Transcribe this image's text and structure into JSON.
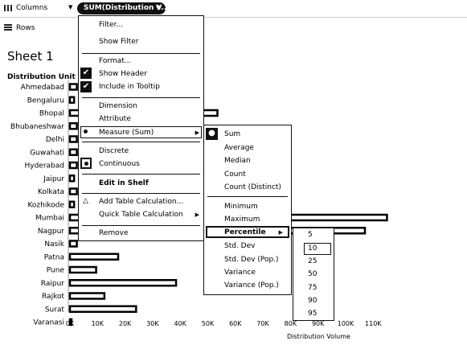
{
  "shelves": {
    "columns_label": "Columns",
    "columns_pill": "SUM(Distribution V...",
    "rows_label": "Rows"
  },
  "sheet": {
    "title": "Sheet 1",
    "row_header": "Distribution Unit"
  },
  "context_menu": {
    "filter": "Filter...",
    "show_filter": "Show Filter",
    "format": "Format...",
    "show_header": "Show Header",
    "include_tooltip": "Include in Tooltip",
    "dimension": "Dimension",
    "attribute": "Attribute",
    "measure": "Measure (Sum)",
    "discrete": "Discrete",
    "continuous": "Continuous",
    "edit_in_shelf": "Edit in Shelf",
    "add_table_calc": "Add Table Calculation...",
    "quick_table_calc": "Quick Table Calculation",
    "remove": "Remove"
  },
  "measure_submenu": {
    "sum": "Sum",
    "average": "Average",
    "median": "Median",
    "count": "Count",
    "count_distinct": "Count (Distinct)",
    "minimum": "Minimum",
    "maximum": "Maximum",
    "percentile": "Percentile",
    "std_dev": "Std. Dev",
    "std_dev_pop": "Std. Dev (Pop.)",
    "variance": "Variance",
    "variance_pop": "Variance (Pop.)"
  },
  "percentile_submenu": {
    "options": [
      "5",
      "10",
      "25",
      "50",
      "75",
      "90",
      "95"
    ],
    "selected": "10"
  },
  "colors": {
    "pill": "#111111",
    "bar_fill": "#ffffff",
    "bar_stroke": "#000000"
  },
  "chart_data": {
    "type": "bar",
    "orientation": "horizontal",
    "xlabel": "Distribution Volume",
    "ylabel": "Distribution Unit",
    "xlim": [
      0,
      115000
    ],
    "xticks": [
      "0K",
      "10K",
      "20K",
      "30K",
      "40K",
      "50K",
      "60K",
      "70K",
      "80K",
      "90K",
      "100K",
      "110K"
    ],
    "categories": [
      "Ahmedabad",
      "Bengaluru",
      "Bhopal",
      "Bhubaneshwar",
      "Delhi",
      "Guwahati",
      "Hyderabad",
      "Jaipur",
      "Kolkata",
      "Kozhikode",
      "Mumbai",
      "Nagpur",
      "Nasik",
      "Patna",
      "Pune",
      "Raipur",
      "Rajkot",
      "Surat",
      "Varanasi"
    ],
    "values": [
      2500,
      1500,
      53500,
      2500,
      2500,
      2500,
      2500,
      1500,
      2500,
      1500,
      115000,
      107000,
      2500,
      17500,
      9500,
      38500,
      12500,
      24000,
      500
    ]
  }
}
